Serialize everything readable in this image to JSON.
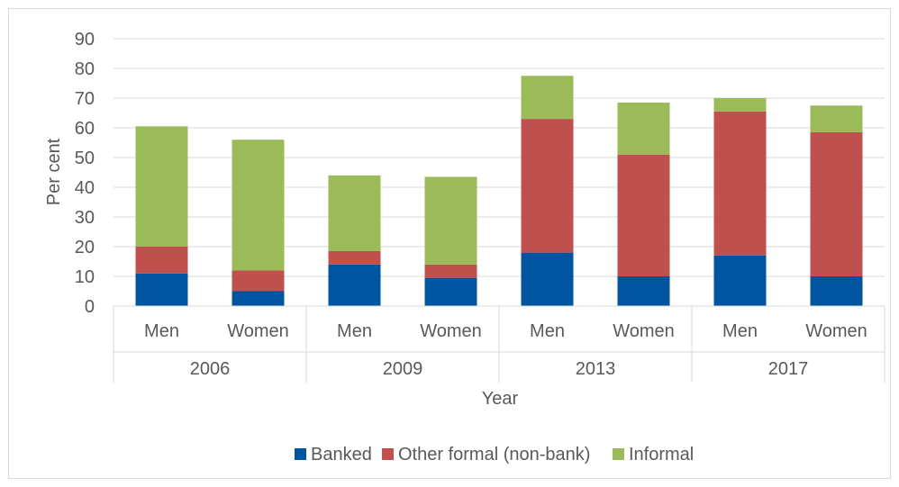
{
  "chart_data": {
    "type": "bar",
    "stacked": true,
    "title": "",
    "xlabel": "Year",
    "ylabel": "Per cent",
    "ylim": [
      0,
      90
    ],
    "yticks": [
      "0",
      "10",
      "20",
      "30",
      "40",
      "50",
      "60",
      "70",
      "80",
      "90"
    ],
    "groups": [
      {
        "label": "2006",
        "categories": [
          "Men",
          "Women"
        ]
      },
      {
        "label": "2009",
        "categories": [
          "Men",
          "Women"
        ]
      },
      {
        "label": "2013",
        "categories": [
          "Men",
          "Women"
        ]
      },
      {
        "label": "2017",
        "categories": [
          "Men",
          "Women"
        ]
      }
    ],
    "series": [
      {
        "name": "Banked",
        "color": "#0055a0",
        "values": [
          11,
          5,
          14,
          9.5,
          18,
          10,
          17,
          10
        ]
      },
      {
        "name": "Other formal (non-bank)",
        "color": "#c0504d",
        "values": [
          9,
          7,
          4.5,
          4.5,
          45,
          41,
          48.5,
          48.5
        ]
      },
      {
        "name": "Informal",
        "color": "#9bbb59",
        "values": [
          40.5,
          44,
          25.5,
          29.5,
          14.5,
          17.5,
          4.5,
          9
        ]
      }
    ],
    "grid": true,
    "legend_position": "bottom"
  }
}
